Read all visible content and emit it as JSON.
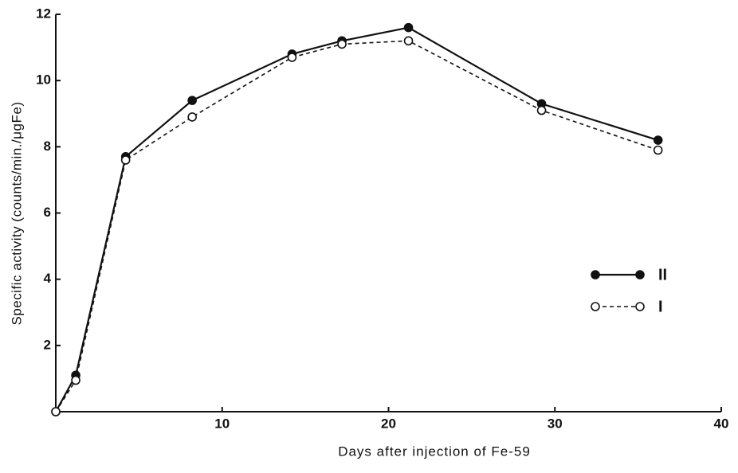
{
  "chart_data": {
    "type": "line",
    "xlabel": "Days after injection of Fe-59",
    "ylabel": "Specific activity (counts/min./μgFe)",
    "xlim": [
      0,
      40
    ],
    "xticks": [
      10,
      20,
      30,
      40
    ],
    "ylim": [
      0,
      12
    ],
    "yticks": [
      2,
      4,
      6,
      8,
      10,
      12
    ],
    "legend": "right",
    "series": [
      {
        "name": "II",
        "color": "#111111",
        "marker": "filled",
        "dash": false,
        "x": [
          0,
          1.2,
          4.2,
          8.2,
          14.2,
          17.2,
          21.2,
          29.2,
          36.2
        ],
        "values": [
          0,
          1.1,
          7.7,
          9.4,
          10.8,
          11.2,
          11.6,
          9.3,
          8.2
        ]
      },
      {
        "name": "I",
        "color": "#111111",
        "marker": "open",
        "dash": true,
        "x": [
          0,
          1.2,
          4.2,
          8.2,
          14.2,
          17.2,
          21.2,
          29.2,
          36.2
        ],
        "values": [
          0,
          0.95,
          7.6,
          8.9,
          10.7,
          11.1,
          11.2,
          9.1,
          7.9
        ]
      }
    ]
  }
}
